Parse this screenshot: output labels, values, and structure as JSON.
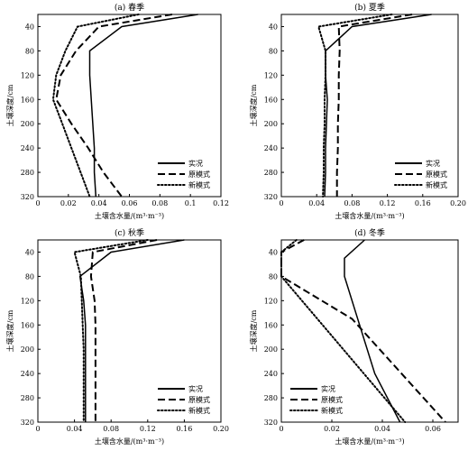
{
  "figure": {
    "panels": [
      {
        "title": "(a) 春季",
        "xlabel": "土壤含水量/(m³·m⁻³)",
        "ylabel": "土壤深度/cm",
        "xlim": [
          0,
          0.12
        ],
        "xticks": [
          "0",
          "0.02",
          "0.04",
          "0.06",
          "0.08",
          "0.1",
          "0.12"
        ],
        "ylim": [
          20,
          320
        ],
        "yticks": [
          "40",
          "80",
          "120",
          "160",
          "200",
          "240",
          "280",
          "320"
        ],
        "show_legend": true
      },
      {
        "title": "(b) 夏季",
        "xlabel": "土壤含水量/(m³·m⁻³)",
        "ylabel": "土壤深度/cm",
        "xlim": [
          0,
          0.2
        ],
        "xticks": [
          "0",
          "0.04",
          "0.08",
          "0.12",
          "0.16",
          "0.20"
        ],
        "ylim": [
          20,
          320
        ],
        "yticks": [
          "40",
          "80",
          "120",
          "160",
          "200",
          "240",
          "280",
          "320"
        ],
        "show_legend": true
      },
      {
        "title": "(c) 秋季",
        "xlabel": "土壤含水量/(m³·m⁻³)",
        "ylabel": "土壤深度/cm",
        "xlim": [
          0,
          0.2
        ],
        "xticks": [
          "0",
          "0.04",
          "0.08",
          "0.12",
          "0.16",
          "0.20"
        ],
        "ylim": [
          20,
          320
        ],
        "yticks": [
          "40",
          "80",
          "120",
          "160",
          "200",
          "240",
          "280",
          "320"
        ],
        "show_legend": true
      },
      {
        "title": "(d) 冬季",
        "xlabel": "土壤含水量/(m³·m⁻³)",
        "ylabel": "土壤深度/cm",
        "xlim": [
          0,
          0.07
        ],
        "xticks": [
          "0",
          "0.02",
          "0.04",
          "0.06"
        ],
        "ylim": [
          20,
          320
        ],
        "yticks": [
          "40",
          "80",
          "120",
          "160",
          "200",
          "240",
          "280",
          "320"
        ],
        "show_legend": true
      }
    ]
  },
  "chart_data": [
    {
      "type": "line",
      "title": "(a) 春季",
      "xlabel": "土壤含水量/(m³·m⁻³)",
      "ylabel": "土壤深度/cm",
      "xlim": [
        0,
        0.12
      ],
      "ylim": [
        20,
        320
      ],
      "y_inverted": true,
      "legend_position": "bottom-right",
      "series": [
        {
          "name": "实况",
          "style": "solid",
          "points": [
            [
              0.105,
              20
            ],
            [
              0.055,
              40
            ],
            [
              0.034,
              80
            ],
            [
              0.034,
              120
            ],
            [
              0.035,
              160
            ],
            [
              0.036,
              200
            ],
            [
              0.037,
              240
            ],
            [
              0.037,
              280
            ],
            [
              0.038,
              320
            ]
          ]
        },
        {
          "name": "原模式",
          "style": "dashed",
          "points": [
            [
              0.088,
              20
            ],
            [
              0.04,
              40
            ],
            [
              0.025,
              80
            ],
            [
              0.015,
              120
            ],
            [
              0.012,
              160
            ],
            [
              0.022,
              200
            ],
            [
              0.033,
              240
            ],
            [
              0.043,
              280
            ],
            [
              0.055,
              320
            ]
          ]
        },
        {
          "name": "新模式",
          "style": "dotted",
          "points": [
            [
              0.066,
              20
            ],
            [
              0.026,
              40
            ],
            [
              0.018,
              80
            ],
            [
              0.012,
              120
            ],
            [
              0.01,
              160
            ],
            [
              0.016,
              200
            ],
            [
              0.022,
              240
            ],
            [
              0.028,
              280
            ],
            [
              0.034,
              320
            ]
          ]
        }
      ]
    },
    {
      "type": "line",
      "title": "(b) 夏季",
      "xlabel": "土壤含水量/(m³·m⁻³)",
      "ylabel": "土壤深度/cm",
      "xlim": [
        0,
        0.2
      ],
      "ylim": [
        20,
        320
      ],
      "y_inverted": true,
      "legend_position": "bottom-right",
      "series": [
        {
          "name": "实况",
          "style": "solid",
          "points": [
            [
              0.17,
              20
            ],
            [
              0.08,
              40
            ],
            [
              0.05,
              80
            ],
            [
              0.05,
              120
            ],
            [
              0.052,
              160
            ],
            [
              0.051,
              200
            ],
            [
              0.05,
              240
            ],
            [
              0.05,
              280
            ],
            [
              0.049,
              320
            ]
          ]
        },
        {
          "name": "原模式",
          "style": "dashed",
          "points": [
            [
              0.148,
              20
            ],
            [
              0.065,
              40
            ],
            [
              0.066,
              80
            ],
            [
              0.065,
              120
            ],
            [
              0.065,
              160
            ],
            [
              0.064,
              200
            ],
            [
              0.064,
              240
            ],
            [
              0.063,
              280
            ],
            [
              0.063,
              320
            ]
          ]
        },
        {
          "name": "新模式",
          "style": "dotted",
          "points": [
            [
              0.125,
              20
            ],
            [
              0.042,
              40
            ],
            [
              0.05,
              80
            ],
            [
              0.05,
              120
            ],
            [
              0.049,
              160
            ],
            [
              0.049,
              200
            ],
            [
              0.048,
              240
            ],
            [
              0.048,
              280
            ],
            [
              0.047,
              320
            ]
          ]
        }
      ]
    },
    {
      "type": "line",
      "title": "(c) 秋季",
      "xlabel": "土壤含水量/(m³·m⁻³)",
      "ylabel": "土壤深度/cm",
      "xlim": [
        0,
        0.2
      ],
      "ylim": [
        20,
        320
      ],
      "y_inverted": true,
      "legend_position": "bottom-right",
      "series": [
        {
          "name": "实况",
          "style": "solid",
          "points": [
            [
              0.16,
              20
            ],
            [
              0.08,
              40
            ],
            [
              0.046,
              80
            ],
            [
              0.05,
              120
            ],
            [
              0.052,
              160
            ],
            [
              0.052,
              200
            ],
            [
              0.052,
              240
            ],
            [
              0.052,
              280
            ],
            [
              0.052,
              320
            ]
          ]
        },
        {
          "name": "原模式",
          "style": "dashed",
          "points": [
            [
              0.13,
              20
            ],
            [
              0.06,
              40
            ],
            [
              0.058,
              80
            ],
            [
              0.062,
              120
            ],
            [
              0.063,
              160
            ],
            [
              0.063,
              200
            ],
            [
              0.063,
              240
            ],
            [
              0.063,
              280
            ],
            [
              0.063,
              320
            ]
          ]
        },
        {
          "name": "新模式",
          "style": "dotted",
          "points": [
            [
              0.12,
              20
            ],
            [
              0.04,
              40
            ],
            [
              0.047,
              80
            ],
            [
              0.048,
              120
            ],
            [
              0.049,
              160
            ],
            [
              0.05,
              200
            ],
            [
              0.05,
              240
            ],
            [
              0.05,
              280
            ],
            [
              0.05,
              320
            ]
          ]
        }
      ]
    },
    {
      "type": "line",
      "title": "(d) 冬季",
      "xlabel": "土壤含水量/(m³·m⁻³)",
      "ylabel": "土壤深度/cm",
      "xlim": [
        0,
        0.07
      ],
      "ylim": [
        20,
        320
      ],
      "y_inverted": true,
      "legend_position": "bottom-left",
      "series": [
        {
          "name": "实况",
          "style": "solid",
          "points": [
            [
              0.033,
              20
            ],
            [
              0.025,
              50
            ],
            [
              0.025,
              80
            ],
            [
              0.031,
              160
            ],
            [
              0.037,
              240
            ],
            [
              0.047,
              320
            ]
          ]
        },
        {
          "name": "原模式",
          "style": "dashed",
          "points": [
            [
              0.009,
              20
            ],
            [
              0.0,
              40
            ],
            [
              0.0,
              80
            ],
            [
              0.028,
              150
            ],
            [
              0.065,
              320
            ]
          ]
        },
        {
          "name": "新模式",
          "style": "dotted",
          "points": [
            [
              0.006,
              20
            ],
            [
              0.0,
              40
            ],
            [
              0.0,
              80
            ],
            [
              0.049,
              320
            ]
          ]
        }
      ]
    }
  ]
}
